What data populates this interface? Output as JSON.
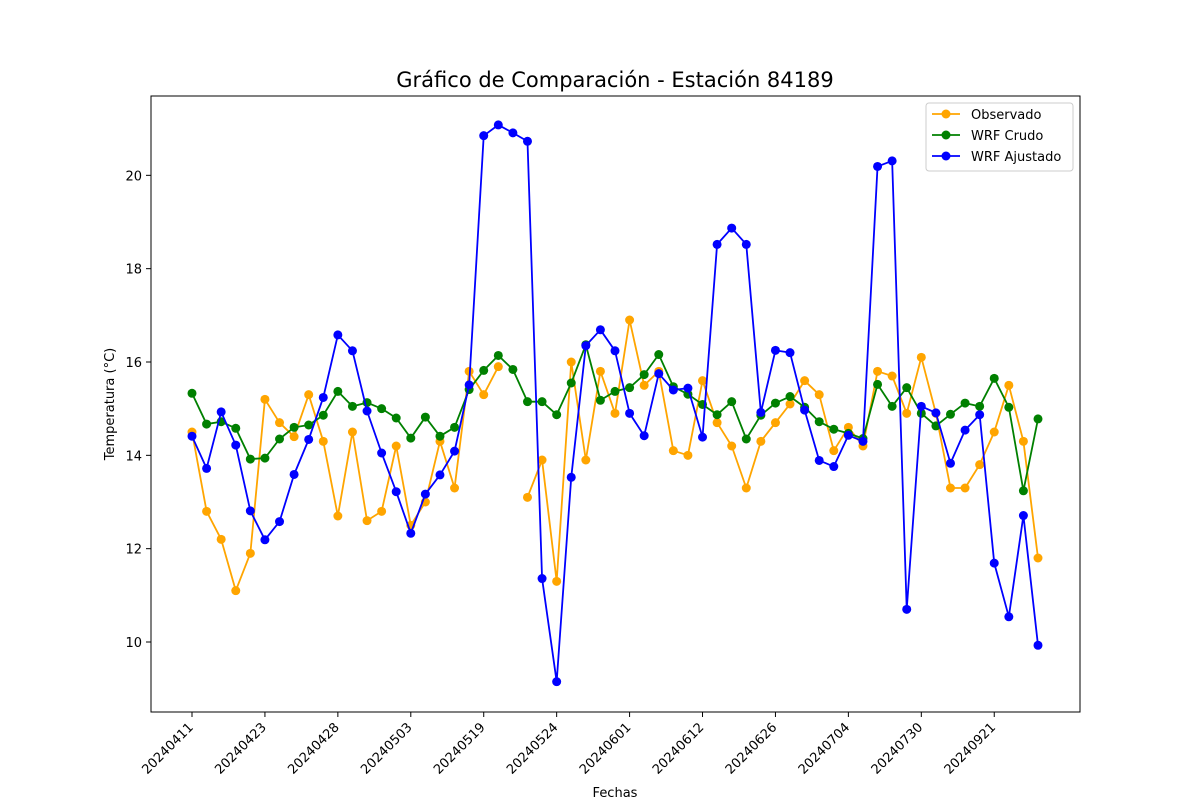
{
  "chart_data": {
    "type": "line",
    "title": "Gráfico de Comparación - Estación 84189",
    "xlabel": "Fechas",
    "ylabel": "Temperatura (°C)",
    "ylim": [
      8.5,
      21.7
    ],
    "yticks": [
      10,
      12,
      14,
      16,
      18,
      20
    ],
    "xtick_labels": [
      "20240411",
      "20240423",
      "20240428",
      "20240503",
      "20240519",
      "20240524",
      "20240601",
      "20240612",
      "20240626",
      "20240704",
      "20240730",
      "20240921"
    ],
    "xtick_every": 5,
    "grid": false,
    "legend_position": "top-right",
    "series": [
      {
        "name": "Observado",
        "color": "#ffa500",
        "values": [
          14.5,
          12.8,
          12.2,
          11.1,
          11.9,
          15.2,
          14.7,
          14.4,
          15.3,
          14.3,
          12.7,
          14.5,
          12.6,
          12.8,
          14.2,
          12.5,
          13.0,
          14.3,
          13.3,
          15.8,
          15.3,
          15.9,
          null,
          13.1,
          13.9,
          11.3,
          16.0,
          13.9,
          15.8,
          14.9,
          16.9,
          15.5,
          15.8,
          14.1,
          14.0,
          15.6,
          14.7,
          14.2,
          13.3,
          14.3,
          14.7,
          15.1,
          15.6,
          15.3,
          14.1,
          14.6,
          14.2,
          15.8,
          15.7,
          14.9,
          16.1,
          14.9,
          13.3,
          13.3,
          13.8,
          14.5,
          15.5,
          14.3,
          11.8
        ]
      },
      {
        "name": "WRF Crudo",
        "color": "#008000",
        "values": [
          15.33,
          14.67,
          14.72,
          14.58,
          13.92,
          13.94,
          14.35,
          14.6,
          14.65,
          14.86,
          15.37,
          15.05,
          15.13,
          15.0,
          14.8,
          14.37,
          14.82,
          14.41,
          14.6,
          15.41,
          15.82,
          16.14,
          15.84,
          15.15,
          15.15,
          14.87,
          15.55,
          16.37,
          15.18,
          15.37,
          15.45,
          15.73,
          16.16,
          15.47,
          15.31,
          15.09,
          14.87,
          15.15,
          14.35,
          14.86,
          15.12,
          15.26,
          15.03,
          14.72,
          14.56,
          14.47,
          14.36,
          15.52,
          15.05,
          15.45,
          14.9,
          14.63,
          14.88,
          15.12,
          15.05,
          15.65,
          15.03,
          13.24,
          14.78
        ]
      },
      {
        "name": "WRF Ajustado",
        "color": "#0000ff",
        "values": [
          14.41,
          13.72,
          14.93,
          14.22,
          12.81,
          12.19,
          12.58,
          13.59,
          14.34,
          15.24,
          16.58,
          16.24,
          14.95,
          14.05,
          13.22,
          12.33,
          13.17,
          13.58,
          14.09,
          15.51,
          20.85,
          21.08,
          20.91,
          20.73,
          11.36,
          9.15,
          13.53,
          16.35,
          16.69,
          16.24,
          14.9,
          14.42,
          15.75,
          15.4,
          15.44,
          14.39,
          18.52,
          18.87,
          18.52,
          14.92,
          16.25,
          16.2,
          14.97,
          13.89,
          13.76,
          14.43,
          14.3,
          20.19,
          20.31,
          10.7,
          15.05,
          14.91,
          13.83,
          14.54,
          14.87,
          11.69,
          10.54,
          12.71,
          9.93
        ]
      }
    ]
  }
}
